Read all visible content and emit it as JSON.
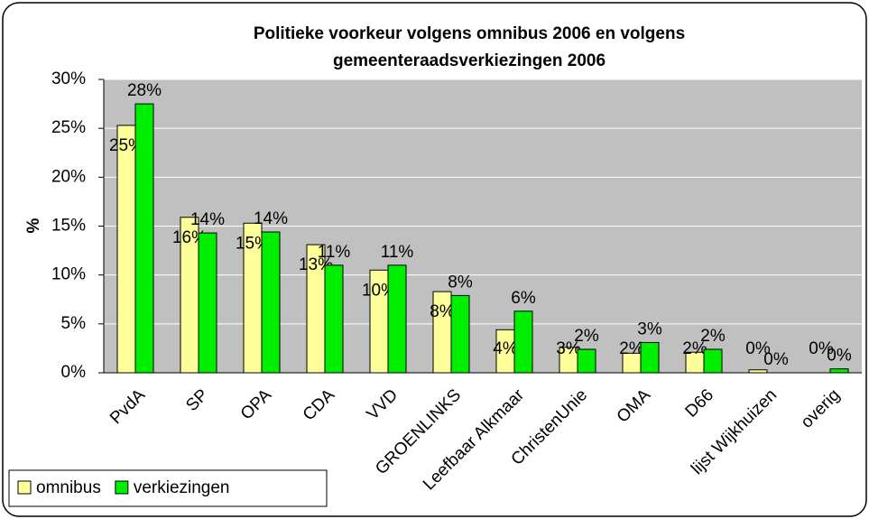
{
  "chart_data": {
    "type": "bar",
    "title": [
      "Politieke voorkeur volgens omnibus 2006 en volgens",
      "gemeenteraadsverkiezingen 2006"
    ],
    "ylabel": "%",
    "categories": [
      "PvdA",
      "SP",
      "OPA",
      "CDA",
      "VVD",
      "GROENLINKS",
      "Leefbaar Alkmaar",
      "ChristenUnie",
      "OMA",
      "D66",
      "lijst Wijkhuizen",
      "overig"
    ],
    "series": [
      {
        "name": "omnibus",
        "color": "#ffff99",
        "values": [
          25.3,
          15.9,
          15.3,
          13.1,
          10.5,
          8.3,
          4.4,
          2.6,
          2.0,
          2.1,
          0.3,
          0.0
        ],
        "value_labels": [
          "25%",
          "16%",
          "15%",
          "13%",
          "10%",
          "8%",
          "4%",
          "3%",
          "2%",
          "2%",
          "0%",
          "0%"
        ]
      },
      {
        "name": "verkiezingen",
        "color": "#00ee00",
        "values": [
          27.5,
          14.3,
          14.4,
          11.0,
          11.0,
          7.9,
          6.3,
          2.4,
          3.1,
          2.4,
          0.0,
          0.4
        ],
        "value_labels": [
          "28%",
          "14%",
          "14%",
          "11%",
          "11%",
          "8%",
          "6%",
          "2%",
          "3%",
          "2%",
          "0%",
          "0%"
        ]
      }
    ],
    "ylim": [
      0,
      30
    ],
    "yticks": [
      {
        "value": 0,
        "label": "0%"
      },
      {
        "value": 5,
        "label": "5%"
      },
      {
        "value": 10,
        "label": "10%"
      },
      {
        "value": 15,
        "label": "15%"
      },
      {
        "value": 20,
        "label": "20%"
      },
      {
        "value": 25,
        "label": "25%"
      },
      {
        "value": 30,
        "label": "30%"
      }
    ],
    "grid": true,
    "legend": "bottom-left"
  }
}
